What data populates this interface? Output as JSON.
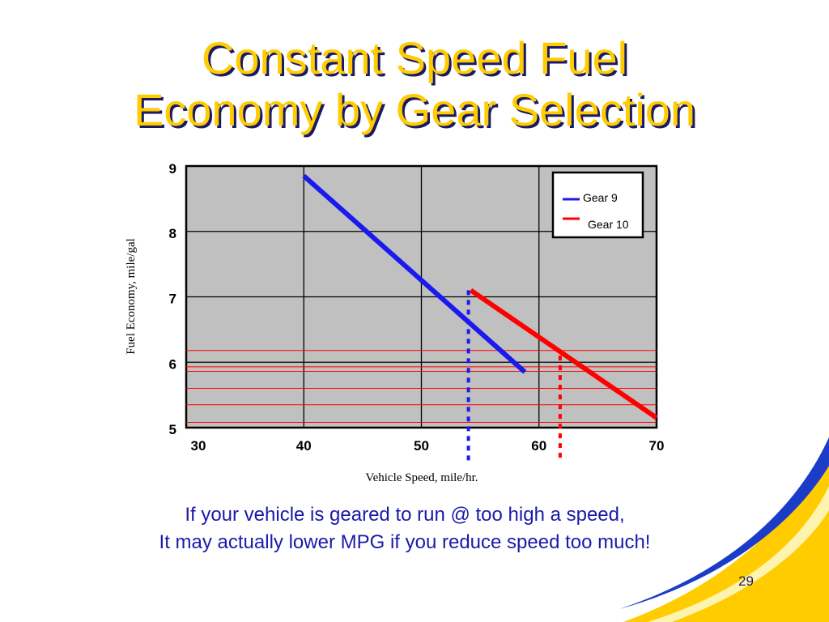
{
  "slide": {
    "title_lines": [
      "Constant Speed Fuel",
      "Economy by Gear Selection"
    ],
    "caption_lines": [
      "If your vehicle is geared to run @ too high a speed,",
      "It may actually lower MPG if you reduce speed too much!"
    ],
    "page_number": "29",
    "colors": {
      "title": "#ffcc00",
      "title_shadow": "#1a1a66",
      "caption": "#1a1aaa",
      "swoosh_yellow": "#ffcc00",
      "swoosh_blue": "#1a3cc8"
    }
  },
  "chart_data": {
    "type": "line",
    "title": "",
    "xlabel": "Vehicle Speed, mile/hr.",
    "ylabel": "Fuel Economy, mile/gal",
    "xlim": [
      30,
      70
    ],
    "ylim": [
      5,
      9
    ],
    "xticks": [
      "30",
      "40",
      "50",
      "60",
      "70"
    ],
    "yticks": [
      "5",
      "6",
      "7",
      "8",
      "9"
    ],
    "grid": true,
    "plot_background": "#c0c0c0",
    "legend": {
      "placement": "top-right"
    },
    "series": [
      {
        "name": "Gear 9",
        "color": "#1a1aee",
        "x": [
          40,
          58.8
        ],
        "y": [
          8.85,
          5.85
        ]
      },
      {
        "name": "Gear 10",
        "color": "#ff0000",
        "x": [
          54.2,
          70
        ],
        "y": [
          7.1,
          5.15
        ]
      }
    ],
    "markers": [
      {
        "type": "vertical-dotted",
        "x": 54,
        "color": "#1a1aee",
        "y_from": 7.1,
        "y_to": 4.5
      },
      {
        "type": "vertical-dotted",
        "x": 61.8,
        "color": "#ff0000",
        "y_from": 6.1,
        "y_to": 4.5
      }
    ],
    "reference_lines": [
      {
        "type": "horizontal",
        "y": 6.18,
        "color": "#ff0000"
      },
      {
        "type": "horizontal",
        "y": 5.93,
        "color": "#ff0000"
      },
      {
        "type": "horizontal",
        "y": 5.86,
        "color": "#ff0000"
      },
      {
        "type": "horizontal",
        "y": 5.6,
        "color": "#ff0000"
      },
      {
        "type": "horizontal",
        "y": 5.35,
        "color": "#ff0000"
      },
      {
        "type": "horizontal",
        "y": 5.08,
        "color": "#ff0000"
      }
    ]
  }
}
